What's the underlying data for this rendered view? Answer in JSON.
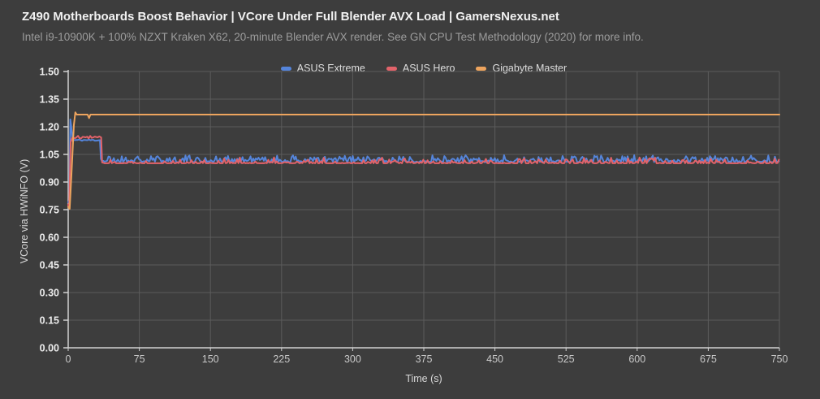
{
  "header": {
    "title": "Z490 Motherboards Boost Behavior | VCore Under Full Blender AVX Load | GamersNexus.net",
    "subtitle": "Intel i9-10900K + 100% NZXT Kraken X62, 20-minute Blender AVX render. See GN CPU Test Methodology (2020) for more info."
  },
  "chart_data": {
    "type": "line",
    "title": "Z490 Motherboards Boost Behavior | VCore Under Full Blender AVX Load | GamersNexus.net",
    "subtitle": "Intel i9-10900K + 100% NZXT Kraken X62, 20-minute Blender AVX render. See GN CPU Test Methodology (2020) for more info.",
    "xlabel": "Time (s)",
    "ylabel": "VCore via HWiNFO (V)",
    "xlim": [
      0,
      750
    ],
    "ylim": [
      0.0,
      1.5
    ],
    "x_ticks": [
      0,
      75,
      150,
      225,
      300,
      375,
      450,
      525,
      600,
      675,
      750
    ],
    "y_ticks": [
      "0.00",
      "0.15",
      "0.30",
      "0.45",
      "0.60",
      "0.75",
      "0.90",
      "1.05",
      "1.20",
      "1.35",
      "1.50"
    ],
    "grid": true,
    "legend_position": "top-center",
    "colors": {
      "background": "#3D3D3D",
      "gridline": "#5C5C5C",
      "axis_line": "#D2D2D2",
      "y_tick_label": "#ECECEC",
      "x_tick_label": "#C9C9C9"
    },
    "series": [
      {
        "name": "ASUS Extreme",
        "color": "#5585DB",
        "key_values": {
          "start_v": 0.79,
          "initial_spike_v": 1.24,
          "boost_plateau_v": 1.13,
          "plateau_end_s": 33,
          "steady_v_range": [
            1.01,
            1.045
          ]
        },
        "segments": [
          {
            "type": "points",
            "pts": [
              [
                0,
                0.79
              ],
              [
                1.2,
                0.8
              ],
              [
                2.2,
                1.24
              ],
              [
                3.2,
                1.205
              ],
              [
                4.5,
                1.127
              ]
            ]
          },
          {
            "type": "noise",
            "from": 5.5,
            "to": 32.5,
            "step": 1.5,
            "lo": 1.123,
            "hi": 1.132,
            "bias": 1.0,
            "seed": 11
          },
          {
            "type": "points",
            "pts": [
              [
                33.5,
                1.127
              ],
              [
                34.5,
                1.025
              ]
            ]
          },
          {
            "type": "noise",
            "from": 35.5,
            "to": 750,
            "step": 1.4,
            "lo": 1.008,
            "hi": 1.046,
            "bias": 2.1,
            "seed": 21
          }
        ]
      },
      {
        "name": "ASUS Hero",
        "color": "#E2636A",
        "key_values": {
          "start_v": 0.76,
          "boost_plateau_v": 1.14,
          "plateau_end_s": 35,
          "steady_v_range": [
            1.0,
            1.035
          ]
        },
        "segments": [
          {
            "type": "points",
            "pts": [
              [
                0,
                0.778
              ],
              [
                1.0,
                0.757
              ],
              [
                2.6,
                1.115
              ],
              [
                4.2,
                1.14
              ]
            ]
          },
          {
            "type": "noise",
            "from": 5.6,
            "to": 33.8,
            "step": 1.6,
            "lo": 1.137,
            "hi": 1.152,
            "bias": 1.6,
            "seed": 12
          },
          {
            "type": "points",
            "pts": [
              [
                34.8,
                1.142
              ],
              [
                35.8,
                1.006
              ]
            ]
          },
          {
            "type": "noise",
            "from": 37,
            "to": 750,
            "step": 1.5,
            "lo": 1.002,
            "hi": 1.034,
            "bias": 5.0,
            "seed": 22
          }
        ]
      },
      {
        "name": "Gigabyte Master",
        "color": "#EDA45E",
        "key_values": {
          "start_v": 0.755,
          "steady_v": 1.266,
          "dip_at_s": 22,
          "dip_v": 1.247
        },
        "segments": [
          {
            "type": "points",
            "pts": [
              [
                0,
                0.765
              ],
              [
                1.5,
                0.754
              ],
              [
                3.5,
                0.95
              ],
              [
                6.0,
                1.21
              ],
              [
                7.5,
                1.278
              ],
              [
                9.0,
                1.266
              ],
              [
                20.5,
                1.266
              ],
              [
                22.0,
                1.247
              ],
              [
                23.5,
                1.266
              ],
              [
                750,
                1.266
              ]
            ]
          }
        ]
      }
    ]
  }
}
